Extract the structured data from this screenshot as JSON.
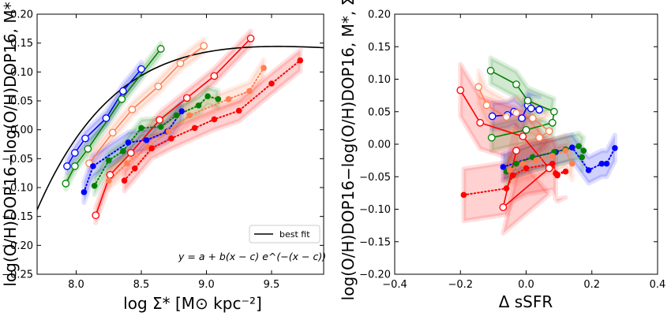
{
  "chart_data": [
    {
      "type": "line",
      "panel": "left",
      "xlabel": "log Σ* [M⊙ kpc⁻²]",
      "ylabel": "log(O/H)DOP16−log(O/H)DOP16, M*",
      "xlim": [
        7.7,
        9.9
      ],
      "ylim": [
        -0.25,
        0.2
      ],
      "x_ticks": [
        8.0,
        8.5,
        9.0,
        9.5
      ],
      "x_tick_labels": [
        "8.0",
        "8.5",
        "9.0",
        "9.5"
      ],
      "y_ticks": [
        -0.25,
        -0.2,
        -0.15,
        -0.1,
        -0.05,
        0.0,
        0.05,
        0.1,
        0.15,
        0.2
      ],
      "y_tick_labels": [
        "−0.25",
        "−0.20",
        "−0.15",
        "−0.10",
        "−0.05",
        "0.00",
        "0.05",
        "0.10",
        "0.15",
        "0.20"
      ],
      "grid": false,
      "legend": {
        "position": "lower-right",
        "entries": [
          "best fit"
        ]
      },
      "annotation": "y = a + b(x − c) e^(−(x − c))",
      "best_fit": {
        "a": 0.1,
        "b": 0.12,
        "c": 8.55
      },
      "series": [
        {
          "name": "blue-open",
          "color": "#0000ff",
          "style": "solid",
          "marker": "open",
          "x": [
            7.93,
            7.99,
            8.07,
            8.23,
            8.36,
            8.5
          ],
          "y": [
            -0.063,
            -0.04,
            -0.015,
            0.02,
            0.067,
            0.105
          ],
          "band": 0.012
        },
        {
          "name": "green-open",
          "color": "#008000",
          "style": "solid",
          "marker": "open",
          "x": [
            7.92,
            7.99,
            8.09,
            8.35,
            8.65
          ],
          "y": [
            -0.093,
            -0.063,
            -0.033,
            0.053,
            0.14
          ],
          "band": 0.01
        },
        {
          "name": "coral-open",
          "color": "#ff7f50",
          "style": "solid",
          "marker": "open",
          "x": [
            8.1,
            8.28,
            8.43,
            8.63,
            8.8,
            8.98
          ],
          "y": [
            -0.058,
            -0.005,
            0.035,
            0.075,
            0.115,
            0.145
          ],
          "band": 0.012
        },
        {
          "name": "red-open",
          "color": "#ff0000",
          "style": "solid",
          "marker": "open",
          "x": [
            8.15,
            8.26,
            8.42,
            8.64,
            8.85,
            9.06,
            9.34
          ],
          "y": [
            -0.148,
            -0.078,
            -0.04,
            0.017,
            0.055,
            0.093,
            0.158
          ],
          "band": 0.013
        },
        {
          "name": "blue-filled",
          "color": "#0000ff",
          "style": "dotted",
          "marker": "filled",
          "x": [
            8.06,
            8.13,
            8.4,
            8.54,
            8.7,
            8.81
          ],
          "y": [
            -0.108,
            -0.063,
            -0.022,
            -0.018,
            -0.003,
            0.032
          ],
          "band": 0.018
        },
        {
          "name": "green-filled",
          "color": "#008000",
          "style": "dotted",
          "marker": "filled",
          "x": [
            8.14,
            8.25,
            8.36,
            8.5,
            8.65,
            8.77,
            8.94,
            9.01,
            9.09
          ],
          "y": [
            -0.097,
            -0.053,
            -0.037,
            0.003,
            0.005,
            0.025,
            0.042,
            0.058,
            0.053
          ],
          "band": 0.015
        },
        {
          "name": "coral-filled",
          "color": "#ff7f50",
          "style": "dotted",
          "marker": "filled",
          "x": [
            8.25,
            8.39,
            8.55,
            8.71,
            8.87,
            9.17,
            9.33,
            9.44
          ],
          "y": [
            -0.088,
            -0.058,
            -0.03,
            -0.003,
            0.025,
            0.053,
            0.067,
            0.107
          ],
          "band": 0.015
        },
        {
          "name": "red-filled",
          "color": "#ff0000",
          "style": "dotted",
          "marker": "filled",
          "x": [
            8.37,
            8.45,
            8.58,
            8.73,
            8.91,
            9.06,
            9.25,
            9.5,
            9.72
          ],
          "y": [
            -0.088,
            -0.067,
            -0.032,
            -0.015,
            0.003,
            0.018,
            0.033,
            0.08,
            0.12
          ],
          "band": 0.018
        }
      ]
    },
    {
      "type": "line",
      "panel": "right",
      "xlabel": "Δ sSFR",
      "ylabel": "log(O/H)DOP16−log(O/H)DOP16, M*, Σ*",
      "xlim": [
        -0.4,
        0.4
      ],
      "ylim": [
        -0.2,
        0.2
      ],
      "x_ticks": [
        -0.4,
        -0.2,
        0.0,
        0.2,
        0.4
      ],
      "x_tick_labels": [
        "−0.4",
        "−0.2",
        "0.0",
        "0.2",
        "0.4"
      ],
      "y_ticks": [
        -0.2,
        -0.15,
        -0.1,
        -0.05,
        0.0,
        0.05,
        0.1,
        0.15,
        0.2
      ],
      "y_tick_labels": [
        "−0.20",
        "−0.15",
        "−0.10",
        "−0.05",
        "0.00",
        "0.05",
        "0.10",
        "0.15",
        "0.20"
      ],
      "grid": false,
      "series": [
        {
          "name": "blue-open",
          "color": "#0000ff",
          "style": "solid",
          "marker": "open",
          "x": [
            -0.103,
            -0.057,
            -0.037,
            -0.013,
            0.005,
            0.04,
            0.015
          ],
          "y": [
            0.043,
            0.045,
            0.05,
            0.04,
            0.06,
            0.053,
            0.055
          ],
          "band": 0.02
        },
        {
          "name": "green-open",
          "color": "#008000",
          "style": "solid",
          "marker": "open",
          "x": [
            -0.108,
            -0.03,
            0.005,
            0.085,
            0.08,
            0.0,
            -0.105
          ],
          "y": [
            0.113,
            0.092,
            0.067,
            0.05,
            0.033,
            0.022,
            0.01
          ],
          "band": 0.02
        },
        {
          "name": "coral-open",
          "color": "#ff7f50",
          "style": "solid",
          "marker": "open",
          "x": [
            -0.145,
            -0.12,
            -0.06,
            -0.03,
            0.02,
            0.07,
            0.04
          ],
          "y": [
            0.088,
            0.06,
            0.042,
            0.048,
            0.04,
            0.02,
            0.01
          ],
          "band": 0.025
        },
        {
          "name": "red-open",
          "color": "#ff0000",
          "style": "solid",
          "marker": "open",
          "x": [
            -0.2,
            -0.14,
            -0.01,
            0.07,
            -0.07,
            -0.03
          ],
          "y": [
            0.083,
            0.033,
            0.012,
            -0.037,
            -0.097,
            -0.01
          ],
          "band": 0.04
        },
        {
          "name": "blue-filled",
          "color": "#0000ff",
          "style": "dotted",
          "marker": "filled",
          "x": [
            -0.07,
            0.02,
            0.09,
            0.14,
            0.19,
            0.23,
            0.245,
            0.27
          ],
          "y": [
            -0.035,
            -0.02,
            -0.012,
            -0.005,
            -0.04,
            -0.03,
            -0.03,
            -0.006
          ],
          "band": 0.02
        },
        {
          "name": "green-filled",
          "color": "#008000",
          "style": "dotted",
          "marker": "filled",
          "x": [
            -0.06,
            -0.03,
            0.02,
            0.085,
            0.12,
            0.16,
            0.175,
            0.17
          ],
          "y": [
            -0.042,
            -0.03,
            -0.02,
            -0.012,
            -0.008,
            -0.003,
            -0.01,
            -0.02
          ],
          "band": 0.02
        },
        {
          "name": "coral-filled",
          "color": "#ff7f50",
          "style": "dotted",
          "marker": "filled",
          "x": [
            -0.05,
            -0.01,
            0.03,
            0.08,
            0.12,
            0.14
          ],
          "y": [
            -0.04,
            -0.03,
            -0.025,
            -0.018,
            -0.01,
            -0.03
          ],
          "band": 0.025
        },
        {
          "name": "red-filled",
          "color": "#ff0000",
          "style": "dotted",
          "marker": "filled",
          "x": [
            -0.19,
            -0.06,
            -0.04,
            0.0,
            0.08,
            0.095,
            0.12,
            0.09
          ],
          "y": [
            -0.078,
            -0.068,
            -0.048,
            -0.037,
            -0.03,
            -0.048,
            -0.042,
            -0.045
          ],
          "band": 0.04
        }
      ]
    }
  ]
}
